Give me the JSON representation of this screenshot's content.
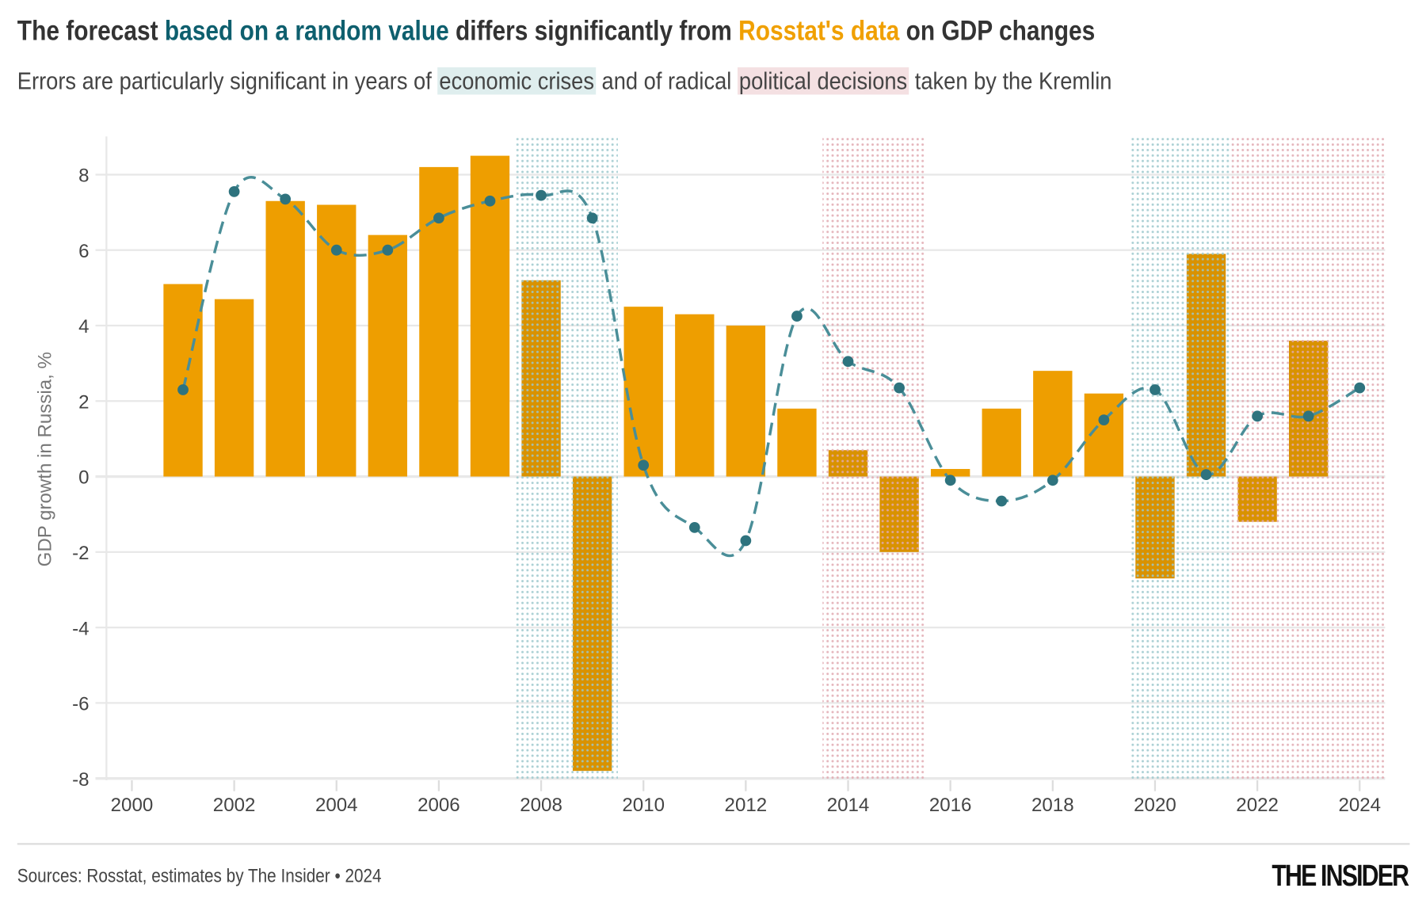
{
  "title": {
    "part1": "The forecast ",
    "part2": "based on a random value",
    "part3": " differs significantly from ",
    "part4": "Rosstat's data",
    "part5": " on GDP changes"
  },
  "subtitle": {
    "part1": "Errors are particularly significant in years of ",
    "part2": "economic crises",
    "part3": " and of radical ",
    "part4": "political decisions",
    "part5": " taken by the Kremlin"
  },
  "source": "Sources: Rosstat, estimates by The Insider • 2024",
  "logo": "THE INSIDER",
  "colors": {
    "bar": "#ee9e00",
    "bar_shaded": "#d99200",
    "forecast": "#4a8e98",
    "forecast_dot": "#2e737e",
    "crisis": "#9cc8cd",
    "political": "#e1a9b1"
  },
  "chart_data": {
    "type": "bar+line",
    "ylabel": "GDP growth in Russia, %",
    "xlabel": "",
    "ylim": [
      -8,
      9
    ],
    "xlim": [
      1999.5,
      2024.5
    ],
    "yticks": [
      8,
      6,
      4,
      2,
      0,
      -2,
      -4,
      -6,
      -8
    ],
    "xticks": [
      2000,
      2002,
      2004,
      2006,
      2008,
      2010,
      2012,
      2014,
      2016,
      2018,
      2020,
      2022,
      2024
    ],
    "series": [
      {
        "name": "Rosstat's data",
        "type": "bar",
        "x": [
          2001,
          2002,
          2003,
          2004,
          2005,
          2006,
          2007,
          2008,
          2009,
          2010,
          2011,
          2012,
          2013,
          2014,
          2015,
          2016,
          2017,
          2018,
          2019,
          2020,
          2021,
          2022,
          2023
        ],
        "values": [
          5.1,
          4.7,
          7.3,
          7.2,
          6.4,
          8.2,
          8.5,
          5.2,
          -7.8,
          4.5,
          4.3,
          4.0,
          1.8,
          0.7,
          -2.0,
          0.2,
          1.8,
          2.8,
          2.2,
          -2.7,
          5.9,
          -1.2,
          3.6
        ]
      },
      {
        "name": "Forecast based on a random value",
        "type": "line",
        "x": [
          2001,
          2002,
          2003,
          2004,
          2005,
          2006,
          2007,
          2008,
          2009,
          2010,
          2011,
          2012,
          2013,
          2014,
          2015,
          2016,
          2017,
          2018,
          2019,
          2020,
          2021,
          2022,
          2023,
          2024
        ],
        "values": [
          2.3,
          7.55,
          7.35,
          6.0,
          6.0,
          6.85,
          7.3,
          7.45,
          6.85,
          0.3,
          -1.35,
          -1.7,
          4.25,
          3.05,
          2.35,
          -0.1,
          -0.65,
          -0.1,
          1.5,
          2.3,
          0.05,
          1.6,
          1.6,
          2.35
        ]
      }
    ],
    "bands": [
      {
        "kind": "economic crises",
        "from": 2007.5,
        "to": 2009.5
      },
      {
        "kind": "political decisions",
        "from": 2013.5,
        "to": 2015.5
      },
      {
        "kind": "economic crises",
        "from": 2019.5,
        "to": 2021.5
      },
      {
        "kind": "political decisions",
        "from": 2021.5,
        "to": 2024.5
      }
    ],
    "grid": true
  }
}
